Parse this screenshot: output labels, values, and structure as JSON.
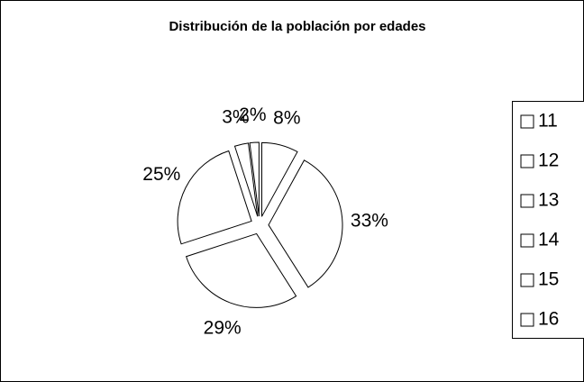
{
  "chart_data": {
    "type": "pie",
    "title": "Distribución de la población por edades",
    "categories": [
      "11",
      "12",
      "13",
      "14",
      "15",
      "16"
    ],
    "values": [
      8,
      33,
      29,
      25,
      3,
      2
    ],
    "value_labels": [
      "8%",
      "33%",
      "29%",
      "25%",
      "3%",
      "2%"
    ],
    "color": "#ffffff",
    "legend": "right"
  }
}
